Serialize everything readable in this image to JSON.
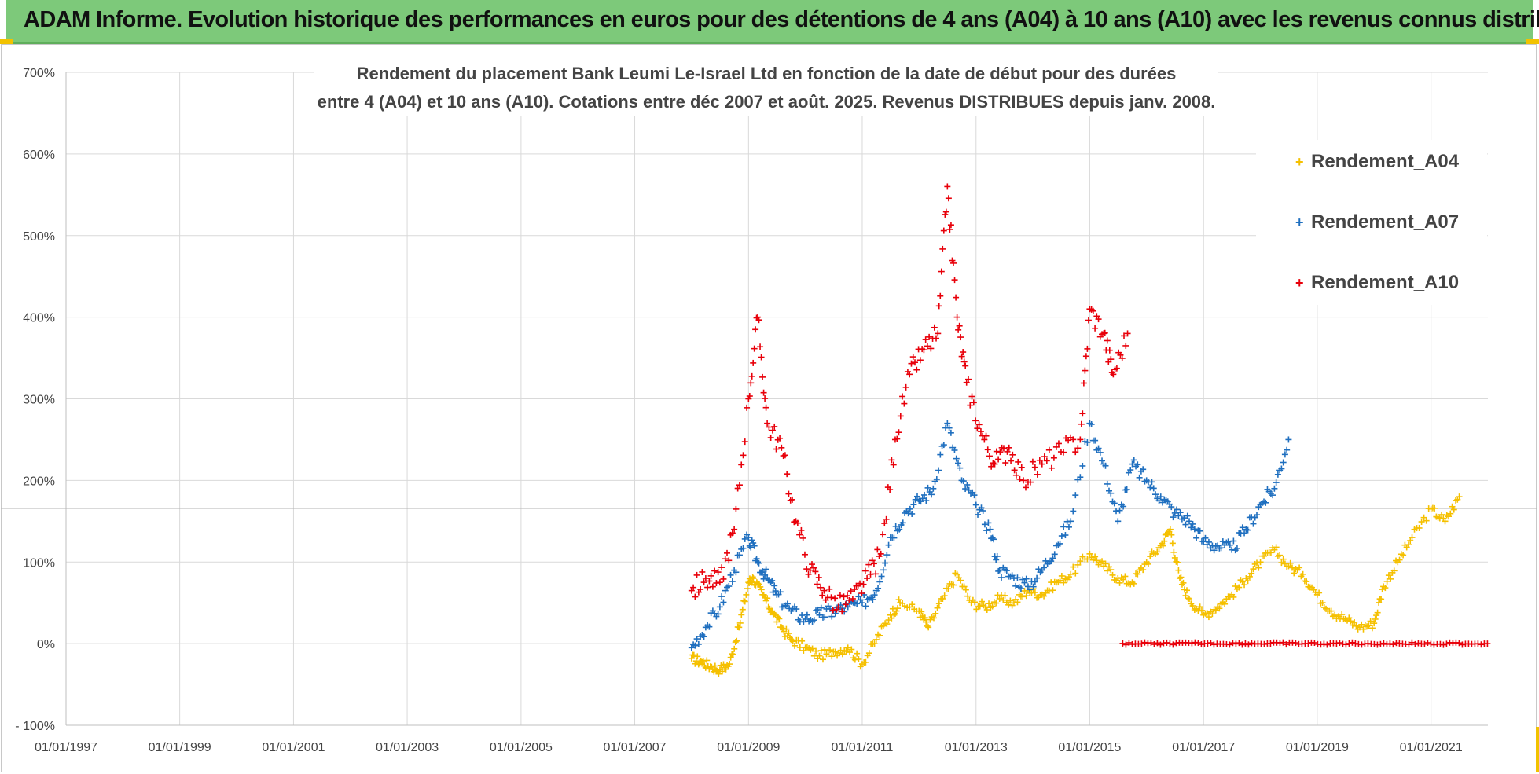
{
  "banner": {
    "title": "ADAM Informe. Evolution historique des performances en euros pour des détentions de 4 ans (A04) à 10 ans (A10) avec les revenus connus distribués"
  },
  "chart_data": {
    "type": "scatter",
    "title_line1": "Rendement du placement Bank Leumi Le-Israel Ltd en fonction de la date de début pour des durées",
    "title_line2": "entre 4 (A04) et 10 ans (A10).  Cotations entre déc 2007 et août. 2025. Revenus DISTRIBUES depuis janv. 2008.",
    "xlabel": "",
    "ylabel": "",
    "x_ticks": [
      "01/01/1997",
      "01/01/1999",
      "01/01/2001",
      "01/01/2003",
      "01/01/2005",
      "01/01/2007",
      "01/01/2009",
      "01/01/2011",
      "01/01/2013",
      "01/01/2015",
      "01/01/2017",
      "01/01/2019",
      "01/01/2021"
    ],
    "y_ticks": [
      "- 100%",
      "0%",
      "100%",
      "200%",
      "300%",
      "400%",
      "500%",
      "600%",
      "700%"
    ],
    "xlim": [
      "1997-01-01",
      "2022-01-01"
    ],
    "ylim": [
      -100,
      700
    ],
    "grid": true,
    "legend_position": "top-right",
    "reference_line_y": 166,
    "series": [
      {
        "name": "Rendement_A04",
        "color": "#f5c000",
        "points": [
          [
            "2008-01-01",
            -18
          ],
          [
            "2008-03-01",
            -22
          ],
          [
            "2008-05-01",
            -28
          ],
          [
            "2008-07-01",
            -32
          ],
          [
            "2008-09-01",
            -25
          ],
          [
            "2008-11-01",
            20
          ],
          [
            "2009-01-01",
            75
          ],
          [
            "2009-02-01",
            80
          ],
          [
            "2009-04-01",
            60
          ],
          [
            "2009-06-01",
            40
          ],
          [
            "2009-08-01",
            20
          ],
          [
            "2009-10-01",
            5
          ],
          [
            "2010-01-01",
            -5
          ],
          [
            "2010-04-01",
            -15
          ],
          [
            "2010-07-01",
            -10
          ],
          [
            "2010-10-01",
            -5
          ],
          [
            "2011-01-01",
            -25
          ],
          [
            "2011-04-01",
            5
          ],
          [
            "2011-07-01",
            35
          ],
          [
            "2011-09-01",
            50
          ],
          [
            "2012-01-01",
            40
          ],
          [
            "2012-03-01",
            20
          ],
          [
            "2012-06-01",
            55
          ],
          [
            "2012-09-01",
            85
          ],
          [
            "2012-12-01",
            50
          ],
          [
            "2013-03-01",
            45
          ],
          [
            "2013-06-01",
            55
          ],
          [
            "2013-09-01",
            50
          ],
          [
            "2013-12-01",
            65
          ],
          [
            "2014-03-01",
            60
          ],
          [
            "2014-06-01",
            75
          ],
          [
            "2014-09-01",
            85
          ],
          [
            "2015-01-01",
            110
          ],
          [
            "2015-04-01",
            95
          ],
          [
            "2015-07-01",
            80
          ],
          [
            "2015-10-01",
            75
          ],
          [
            "2016-01-01",
            100
          ],
          [
            "2016-04-01",
            120
          ],
          [
            "2016-06-01",
            140
          ],
          [
            "2016-08-01",
            80
          ],
          [
            "2016-10-01",
            55
          ],
          [
            "2017-01-01",
            35
          ],
          [
            "2017-04-01",
            45
          ],
          [
            "2017-07-01",
            60
          ],
          [
            "2017-10-01",
            80
          ],
          [
            "2018-01-01",
            100
          ],
          [
            "2018-04-01",
            115
          ],
          [
            "2018-07-01",
            95
          ],
          [
            "2018-10-01",
            85
          ],
          [
            "2019-01-01",
            60
          ],
          [
            "2019-04-01",
            40
          ],
          [
            "2019-07-01",
            30
          ],
          [
            "2019-10-01",
            20
          ],
          [
            "2020-01-01",
            25
          ],
          [
            "2020-03-01",
            70
          ],
          [
            "2020-06-01",
            100
          ],
          [
            "2020-09-01",
            130
          ],
          [
            "2021-01-01",
            165
          ],
          [
            "2021-04-01",
            150
          ],
          [
            "2021-07-01",
            180
          ]
        ]
      },
      {
        "name": "Rendement_A07",
        "color": "#1f6fbf",
        "points": [
          [
            "2008-01-01",
            -5
          ],
          [
            "2008-04-01",
            20
          ],
          [
            "2008-07-01",
            45
          ],
          [
            "2008-10-01",
            90
          ],
          [
            "2009-01-01",
            130
          ],
          [
            "2009-03-01",
            100
          ],
          [
            "2009-05-01",
            80
          ],
          [
            "2009-07-01",
            60
          ],
          [
            "2009-10-01",
            40
          ],
          [
            "2010-01-01",
            30
          ],
          [
            "2010-04-01",
            35
          ],
          [
            "2010-07-01",
            40
          ],
          [
            "2010-10-01",
            45
          ],
          [
            "2011-01-01",
            50
          ],
          [
            "2011-04-01",
            65
          ],
          [
            "2011-07-01",
            130
          ],
          [
            "2011-10-01",
            160
          ],
          [
            "2012-01-01",
            175
          ],
          [
            "2012-04-01",
            190
          ],
          [
            "2012-07-01",
            270
          ],
          [
            "2012-10-01",
            200
          ],
          [
            "2013-01-01",
            170
          ],
          [
            "2013-04-01",
            140
          ],
          [
            "2013-06-01",
            90
          ],
          [
            "2013-09-01",
            80
          ],
          [
            "2013-12-01",
            70
          ],
          [
            "2014-03-01",
            90
          ],
          [
            "2014-06-01",
            120
          ],
          [
            "2014-09-01",
            150
          ],
          [
            "2015-01-01",
            270
          ],
          [
            "2015-04-01",
            220
          ],
          [
            "2015-07-01",
            150
          ],
          [
            "2015-10-01",
            220
          ],
          [
            "2016-01-01",
            200
          ],
          [
            "2016-04-01",
            180
          ],
          [
            "2016-07-01",
            160
          ],
          [
            "2016-10-01",
            150
          ],
          [
            "2017-01-01",
            125
          ],
          [
            "2017-04-01",
            120
          ],
          [
            "2017-07-01",
            115
          ],
          [
            "2017-10-01",
            140
          ],
          [
            "2018-01-01",
            170
          ],
          [
            "2018-04-01",
            190
          ],
          [
            "2018-07-01",
            250
          ]
        ]
      },
      {
        "name": "Rendement_A10",
        "color": "#e8000a",
        "points": [
          [
            "2008-01-01",
            65
          ],
          [
            "2008-04-01",
            80
          ],
          [
            "2008-07-01",
            75
          ],
          [
            "2008-10-01",
            140
          ],
          [
            "2009-01-01",
            300
          ],
          [
            "2009-03-01",
            400
          ],
          [
            "2009-05-01",
            270
          ],
          [
            "2009-08-01",
            240
          ],
          [
            "2009-11-01",
            150
          ],
          [
            "2010-02-01",
            90
          ],
          [
            "2010-05-01",
            65
          ],
          [
            "2010-08-01",
            45
          ],
          [
            "2010-11-01",
            55
          ],
          [
            "2011-02-01",
            80
          ],
          [
            "2011-05-01",
            110
          ],
          [
            "2011-08-01",
            250
          ],
          [
            "2011-11-01",
            330
          ],
          [
            "2012-02-01",
            360
          ],
          [
            "2012-05-01",
            380
          ],
          [
            "2012-07-01",
            560
          ],
          [
            "2012-09-01",
            400
          ],
          [
            "2012-11-01",
            320
          ],
          [
            "2013-02-01",
            260
          ],
          [
            "2013-05-01",
            220
          ],
          [
            "2013-08-01",
            240
          ],
          [
            "2013-11-01",
            200
          ],
          [
            "2014-03-01",
            220
          ],
          [
            "2014-07-01",
            235
          ],
          [
            "2014-11-01",
            250
          ],
          [
            "2015-01-01",
            410
          ],
          [
            "2015-04-01",
            380
          ],
          [
            "2015-06-01",
            330
          ],
          [
            "2015-09-01",
            380
          ]
        ]
      }
    ],
    "zero_run": {
      "series": "Rendement_A10",
      "color": "#e8000a",
      "x_start": "2015-08-01",
      "x_end": "2021-12-31",
      "y": 0
    }
  }
}
